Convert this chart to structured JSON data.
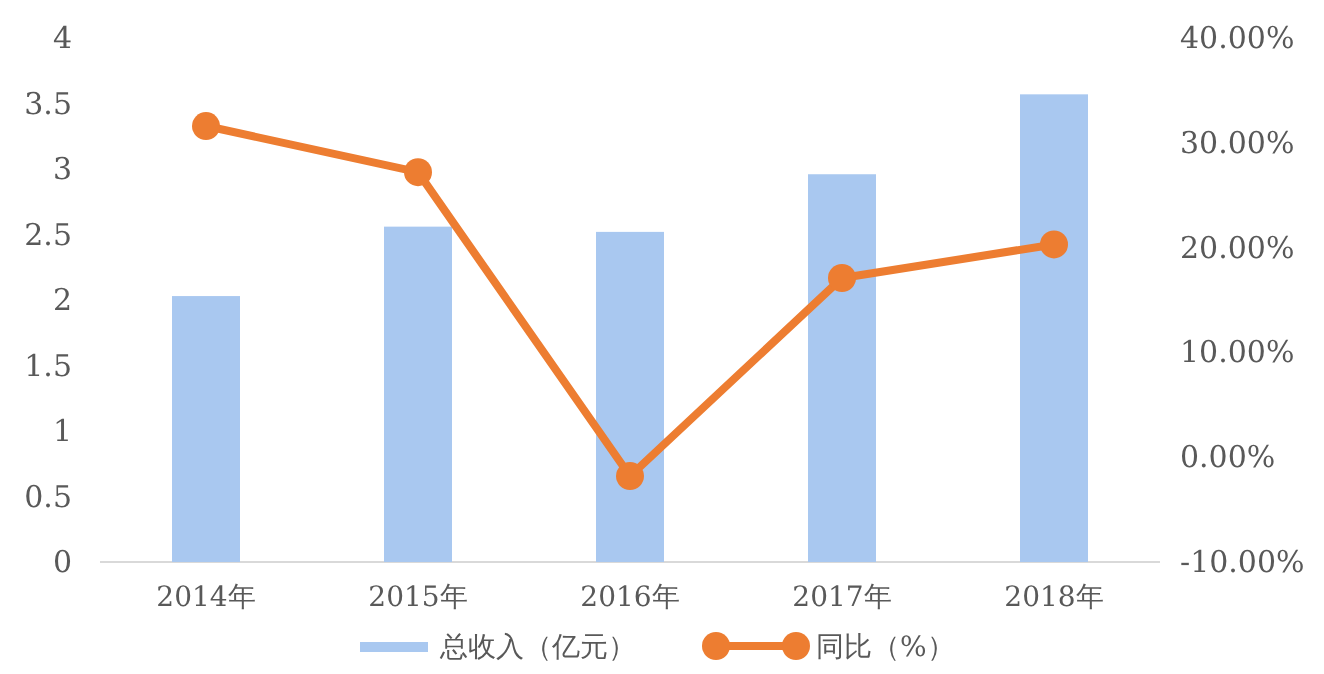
{
  "chart_data": {
    "type": "bar",
    "categories": [
      "2014年",
      "2015年",
      "2016年",
      "2017年",
      "2018年"
    ],
    "series": [
      {
        "name": "总收入（亿元）",
        "color": "#a9c8f0",
        "values": [
          2.03,
          2.56,
          2.52,
          2.96,
          3.57
        ]
      },
      {
        "name": "同比（%）",
        "type": "line",
        "axis": "y2",
        "color": "#ed7d31",
        "marker": "circle",
        "values": [
          31.6,
          27.2,
          -1.8,
          17.1,
          20.3
        ]
      }
    ],
    "ylim": [
      0,
      4
    ],
    "yticks": [
      0,
      0.5,
      1,
      1.5,
      2,
      2.5,
      3,
      3.5,
      4
    ],
    "y2lim": [
      -10,
      40
    ],
    "y2ticks": [
      {
        "value": -10,
        "label": "-10.00%"
      },
      {
        "value": 0,
        "label": "0.00%"
      },
      {
        "value": 10,
        "label": "10.00%"
      },
      {
        "value": 20,
        "label": "20.00%"
      },
      {
        "value": 30,
        "label": "30.00%"
      },
      {
        "value": 40,
        "label": "40.00%"
      }
    ],
    "grid": false,
    "legend": "bottom"
  }
}
